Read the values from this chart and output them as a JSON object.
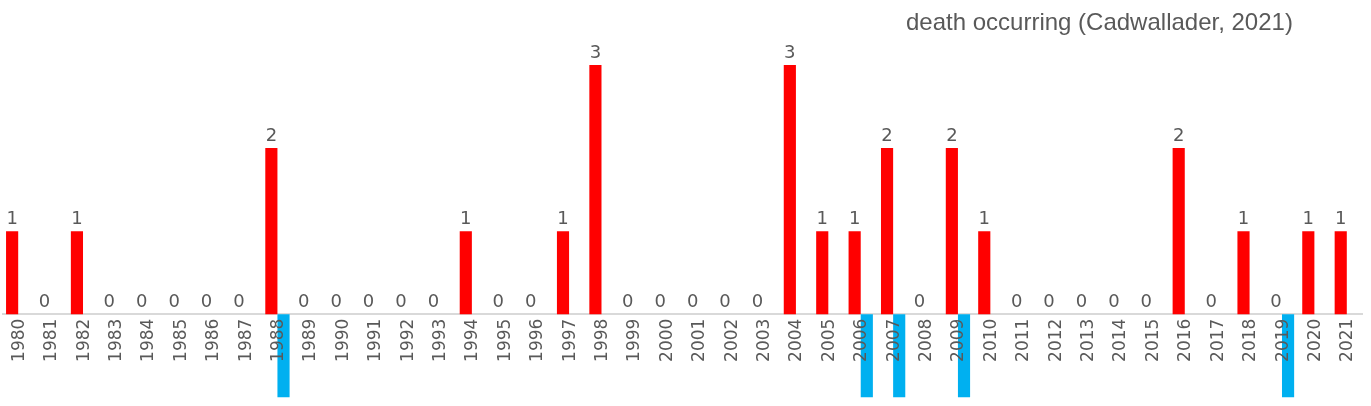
{
  "chart_data": {
    "type": "bar",
    "annotations": [
      "death occurring (Cadwallader, 2021)"
    ],
    "categories": [
      "1980",
      "1981",
      "1982",
      "1983",
      "1984",
      "1985",
      "1986",
      "1987",
      "1988",
      "1989",
      "1990",
      "1991",
      "1992",
      "1993",
      "1994",
      "1995",
      "1996",
      "1997",
      "1998",
      "1999",
      "2000",
      "2001",
      "2002",
      "2003",
      "2004",
      "2005",
      "2006",
      "2007",
      "2008",
      "2009",
      "2010",
      "2011",
      "2012",
      "2013",
      "2014",
      "2015",
      "2016",
      "2017",
      "2018",
      "2019",
      "2020",
      "2021"
    ],
    "series": [
      {
        "color": "#ff0000",
        "values": [
          1,
          0,
          1,
          0,
          0,
          0,
          0,
          0,
          2,
          0,
          0,
          0,
          0,
          0,
          1,
          0,
          0,
          1,
          3,
          0,
          0,
          0,
          0,
          0,
          3,
          1,
          1,
          2,
          0,
          2,
          1,
          0,
          0,
          0,
          0,
          0,
          2,
          0,
          1,
          0,
          1,
          1
        ],
        "value_labels": [
          "1",
          "0",
          "1",
          "0",
          "0",
          "0",
          "0",
          "0",
          "2",
          "0",
          "0",
          "0",
          "0",
          "0",
          "1",
          "0",
          "0",
          "1",
          "3",
          "0",
          "0",
          "0",
          "0",
          "0",
          "3",
          "1",
          "1",
          "2",
          "0",
          "2",
          "1",
          "0",
          "0",
          "0",
          "0",
          "0",
          "2",
          "0",
          "1",
          "0",
          "1",
          "1"
        ]
      },
      {
        "color": "#00b0f0",
        "values": [
          null,
          null,
          null,
          null,
          null,
          null,
          null,
          null,
          -1,
          null,
          null,
          null,
          null,
          null,
          null,
          null,
          null,
          null,
          null,
          null,
          null,
          null,
          null,
          null,
          null,
          null,
          -1,
          -1,
          null,
          -1,
          null,
          null,
          null,
          null,
          null,
          null,
          null,
          null,
          null,
          -1,
          null,
          null
        ]
      }
    ],
    "legend": false
  }
}
